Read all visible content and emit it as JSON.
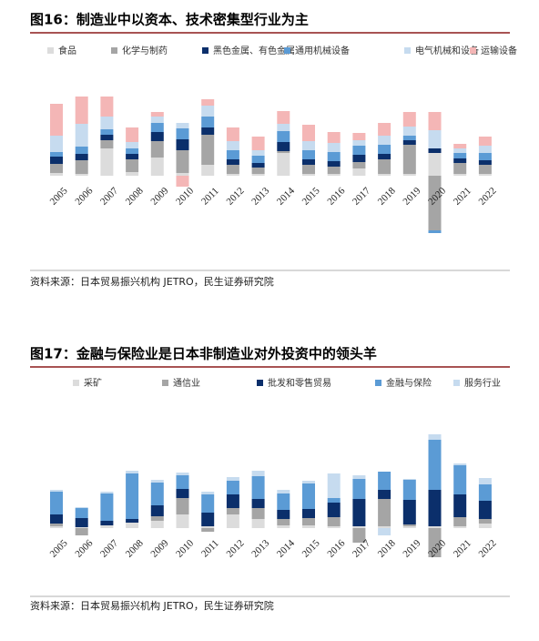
{
  "chart_data": [
    {
      "type": "stacked-bar",
      "title": "图16：制造业中以资本、技术密集型行业为主",
      "categories": [
        "2005",
        "2006",
        "2007",
        "2008",
        "2009",
        "2010",
        "2011",
        "2012",
        "2013",
        "2014",
        "2015",
        "2016",
        "2017",
        "2018",
        "2019",
        "2020",
        "2021",
        "2022"
      ],
      "series": [
        {
          "name": "食品",
          "color": "#dcdcdc",
          "values": [
            3,
            2,
            30,
            4,
            20,
            3,
            12,
            2,
            2,
            25,
            2,
            2,
            8,
            2,
            2,
            25,
            2,
            2
          ]
        },
        {
          "name": "化学与制药",
          "color": "#a5a5a5",
          "values": [
            10,
            15,
            9,
            14,
            18,
            25,
            33,
            10,
            7,
            2,
            10,
            8,
            7,
            16,
            32,
            -60,
            12,
            10
          ]
        },
        {
          "name": "黑色金属、有色金属",
          "color": "#0b2f6b",
          "values": [
            8,
            7,
            6,
            6,
            10,
            12,
            8,
            6,
            5,
            10,
            6,
            6,
            8,
            6,
            5,
            5,
            5,
            5
          ]
        },
        {
          "name": "通用机械设备",
          "color": "#5b9bd5",
          "values": [
            5,
            8,
            6,
            6,
            10,
            12,
            12,
            10,
            8,
            12,
            10,
            10,
            10,
            10,
            5,
            -3,
            6,
            8
          ]
        },
        {
          "name": "电气机械和设备",
          "color": "#c6dbef",
          "values": [
            18,
            25,
            14,
            7,
            7,
            6,
            12,
            10,
            6,
            8,
            10,
            10,
            6,
            10,
            10,
            20,
            5,
            8
          ]
        },
        {
          "name": "运输设备",
          "color": "#f4b6b6",
          "values": [
            35,
            30,
            22,
            16,
            5,
            -12,
            7,
            15,
            15,
            14,
            18,
            12,
            8,
            14,
            16,
            20,
            5,
            10
          ]
        }
      ],
      "source": "资料来源：日本贸易振兴机构 JETRO，民生证券研究院"
    },
    {
      "type": "stacked-bar",
      "title": "图17：金融与保险业是日本非制造业对外投资中的领头羊",
      "categories": [
        "2005",
        "2006",
        "2007",
        "2008",
        "2009",
        "2010",
        "2011",
        "2012",
        "2013",
        "2014",
        "2015",
        "2016",
        "2017",
        "2018",
        "2019",
        "2020",
        "2021",
        "2022"
      ],
      "series": [
        {
          "name": "采矿",
          "color": "#dcdcdc",
          "values": [
            2,
            1,
            3,
            6,
            8,
            15,
            2,
            15,
            10,
            3,
            3,
            2,
            2,
            2,
            2,
            2,
            2,
            5
          ]
        },
        {
          "name": "通信业",
          "color": "#a5a5a5",
          "values": [
            3,
            -8,
            0,
            0,
            5,
            18,
            -4,
            7,
            12,
            7,
            8,
            10,
            -16,
            30,
            2,
            -32,
            10,
            5
          ]
        },
        {
          "name": "批发和零售贸易",
          "color": "#0b2f6b",
          "values": [
            10,
            10,
            5,
            4,
            12,
            10,
            15,
            15,
            10,
            10,
            10,
            16,
            30,
            10,
            27,
            40,
            25,
            20
          ]
        },
        {
          "name": "金融与保险",
          "color": "#5b9bd5",
          "values": [
            25,
            11,
            30,
            50,
            25,
            15,
            20,
            15,
            25,
            18,
            28,
            5,
            22,
            20,
            22,
            55,
            32,
            18
          ]
        },
        {
          "name": "服务行业",
          "color": "#c6dbef",
          "values": [
            2,
            1,
            2,
            3,
            3,
            3,
            3,
            4,
            6,
            4,
            3,
            27,
            4,
            -8,
            1,
            6,
            2,
            7
          ]
        }
      ],
      "source": "资料来源：日本贸易振兴机构 JETRO，民生证券研究院"
    }
  ]
}
